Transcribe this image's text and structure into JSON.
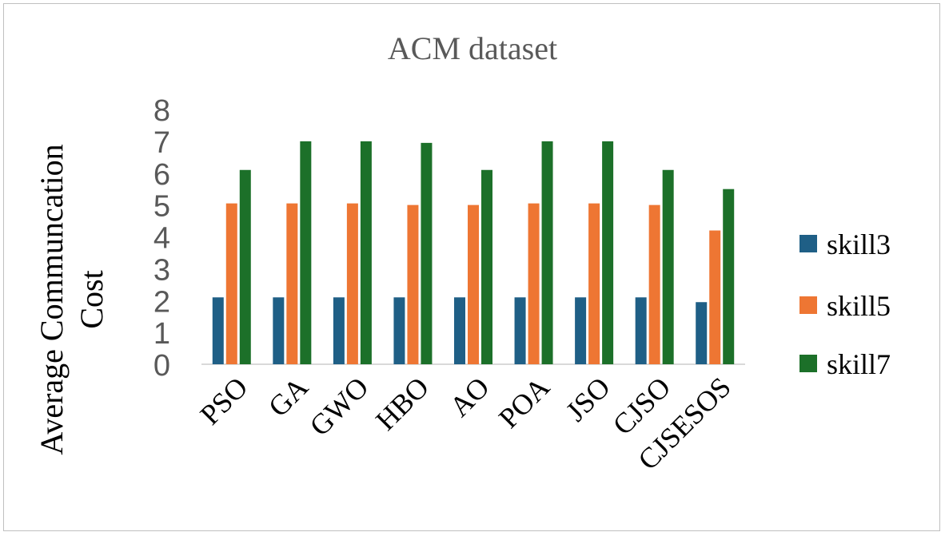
{
  "chart_data": {
    "type": "bar",
    "title": "ACM dataset",
    "ylabel_lines": [
      "Average Communcation",
      "Cost"
    ],
    "xlabel": "",
    "categories": [
      "PSO",
      "GA",
      "GWO",
      "HBO",
      "AO",
      "POA",
      "JSO",
      "CJSO",
      "CJSESOS"
    ],
    "yticks": [
      0,
      1,
      2,
      3,
      4,
      5,
      6,
      7,
      8
    ],
    "ylim": [
      0,
      8
    ],
    "grid": false,
    "legend_position": "right",
    "series": [
      {
        "name": "skill3",
        "color": "#1f5f86",
        "values": [
          2.1,
          2.1,
          2.1,
          2.1,
          2.1,
          2.1,
          2.1,
          2.1,
          1.95
        ]
      },
      {
        "name": "skill5",
        "color": "#ee7633",
        "values": [
          5.05,
          5.05,
          5.05,
          5.0,
          5.0,
          5.05,
          5.05,
          5.0,
          4.2
        ]
      },
      {
        "name": "skill7",
        "color": "#1c7029",
        "values": [
          6.1,
          7.0,
          7.0,
          6.95,
          6.1,
          7.0,
          7.0,
          6.1,
          5.5
        ]
      }
    ]
  }
}
